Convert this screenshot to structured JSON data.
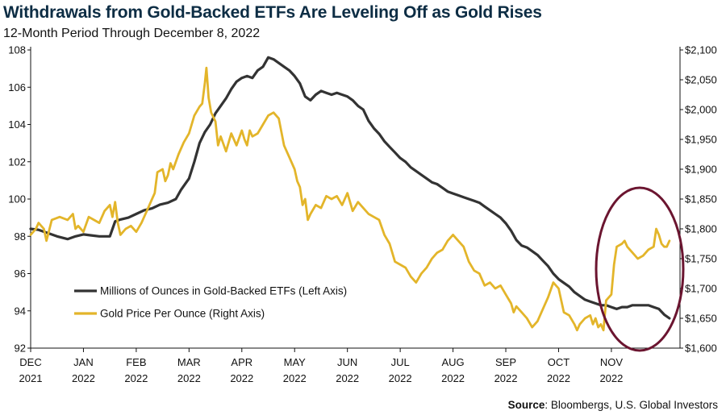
{
  "header": {
    "title": "Withdrawals from Gold-Backed ETFs Are Leveling Off as Gold Rises",
    "subtitle": "12-Month Period Through December 8, 2022"
  },
  "footer": {
    "source_label": "Source",
    "source_text": ": Bloombergs, U.S. Global Investors"
  },
  "colors": {
    "etf": "#333333",
    "gold": "#e3b52a",
    "circle": "#6b1530",
    "axis": "#111111"
  },
  "chart_data": {
    "type": "line",
    "x_ticks": [
      {
        "month": "DEC",
        "year": "2021"
      },
      {
        "month": "JAN",
        "year": "2022"
      },
      {
        "month": "FEB",
        "year": "2022"
      },
      {
        "month": "MAR",
        "year": "2022"
      },
      {
        "month": "APR",
        "year": "2022"
      },
      {
        "month": "MAY",
        "year": "2022"
      },
      {
        "month": "JUN",
        "year": "2022"
      },
      {
        "month": "JUL",
        "year": "2022"
      },
      {
        "month": "AUG",
        "year": "2022"
      },
      {
        "month": "SEP",
        "year": "2022"
      },
      {
        "month": "OCT",
        "year": "2022"
      },
      {
        "month": "NOV",
        "year": "2022"
      }
    ],
    "x_range": [
      0,
      12.3
    ],
    "y_left": {
      "min": 92,
      "max": 108,
      "ticks": [
        "92",
        "94",
        "96",
        "98",
        "100",
        "102",
        "104",
        "106",
        "108"
      ]
    },
    "y_right": {
      "min": 1600,
      "max": 2100,
      "ticks": [
        "$1,600",
        "$1,650",
        "$1,700",
        "$1,750",
        "$1,800",
        "$1,850",
        "$1,900",
        "$1,950",
        "$2,000",
        "$2,050",
        "$2,100"
      ]
    },
    "series": [
      {
        "name": "Millions of Ounces in Gold-Backed ETFs (Left Axis)",
        "axis": "left",
        "points": [
          [
            0.0,
            98.4
          ],
          [
            0.15,
            98.35
          ],
          [
            0.3,
            98.2
          ],
          [
            0.5,
            98.0
          ],
          [
            0.7,
            97.85
          ],
          [
            0.85,
            98.0
          ],
          [
            1.0,
            98.1
          ],
          [
            1.15,
            98.05
          ],
          [
            1.3,
            98.0
          ],
          [
            1.5,
            98.0
          ],
          [
            1.6,
            98.8
          ],
          [
            1.7,
            98.9
          ],
          [
            1.85,
            99.0
          ],
          [
            2.0,
            99.2
          ],
          [
            2.15,
            99.4
          ],
          [
            2.3,
            99.5
          ],
          [
            2.45,
            99.7
          ],
          [
            2.6,
            99.8
          ],
          [
            2.75,
            100.0
          ],
          [
            2.85,
            100.5
          ],
          [
            3.0,
            101.1
          ],
          [
            3.1,
            102.0
          ],
          [
            3.2,
            103.0
          ],
          [
            3.3,
            103.6
          ],
          [
            3.4,
            104.0
          ],
          [
            3.5,
            104.6
          ],
          [
            3.6,
            105.0
          ],
          [
            3.7,
            105.4
          ],
          [
            3.8,
            105.9
          ],
          [
            3.9,
            106.3
          ],
          [
            4.0,
            106.5
          ],
          [
            4.1,
            106.6
          ],
          [
            4.2,
            106.5
          ],
          [
            4.3,
            106.9
          ],
          [
            4.4,
            107.1
          ],
          [
            4.5,
            107.6
          ],
          [
            4.6,
            107.5
          ],
          [
            4.7,
            107.3
          ],
          [
            4.8,
            107.1
          ],
          [
            4.9,
            106.9
          ],
          [
            5.0,
            106.6
          ],
          [
            5.1,
            106.2
          ],
          [
            5.2,
            105.5
          ],
          [
            5.3,
            105.3
          ],
          [
            5.4,
            105.6
          ],
          [
            5.5,
            105.8
          ],
          [
            5.6,
            105.7
          ],
          [
            5.7,
            105.6
          ],
          [
            5.8,
            105.7
          ],
          [
            5.9,
            105.6
          ],
          [
            6.0,
            105.5
          ],
          [
            6.1,
            105.3
          ],
          [
            6.2,
            105.0
          ],
          [
            6.3,
            104.8
          ],
          [
            6.4,
            104.2
          ],
          [
            6.5,
            103.8
          ],
          [
            6.6,
            103.5
          ],
          [
            6.7,
            103.1
          ],
          [
            6.8,
            102.8
          ],
          [
            6.9,
            102.5
          ],
          [
            7.0,
            102.2
          ],
          [
            7.1,
            102.0
          ],
          [
            7.2,
            101.7
          ],
          [
            7.3,
            101.5
          ],
          [
            7.4,
            101.3
          ],
          [
            7.5,
            101.1
          ],
          [
            7.6,
            100.9
          ],
          [
            7.7,
            100.8
          ],
          [
            7.8,
            100.6
          ],
          [
            7.9,
            100.4
          ],
          [
            8.0,
            100.3
          ],
          [
            8.1,
            100.2
          ],
          [
            8.2,
            100.1
          ],
          [
            8.3,
            100.0
          ],
          [
            8.4,
            99.9
          ],
          [
            8.5,
            99.8
          ],
          [
            8.6,
            99.6
          ],
          [
            8.7,
            99.4
          ],
          [
            8.8,
            99.2
          ],
          [
            8.9,
            99.0
          ],
          [
            9.0,
            98.7
          ],
          [
            9.1,
            98.3
          ],
          [
            9.2,
            97.8
          ],
          [
            9.3,
            97.5
          ],
          [
            9.4,
            97.4
          ],
          [
            9.5,
            97.2
          ],
          [
            9.6,
            97.0
          ],
          [
            9.7,
            96.7
          ],
          [
            9.8,
            96.4
          ],
          [
            9.9,
            96.0
          ],
          [
            10.0,
            95.7
          ],
          [
            10.1,
            95.5
          ],
          [
            10.2,
            95.3
          ],
          [
            10.3,
            95.0
          ],
          [
            10.4,
            94.8
          ],
          [
            10.5,
            94.6
          ],
          [
            10.6,
            94.5
          ],
          [
            10.7,
            94.4
          ],
          [
            10.8,
            94.3
          ],
          [
            10.9,
            94.3
          ],
          [
            11.0,
            94.2
          ],
          [
            11.1,
            94.1
          ],
          [
            11.2,
            94.2
          ],
          [
            11.3,
            94.2
          ],
          [
            11.4,
            94.3
          ],
          [
            11.5,
            94.3
          ],
          [
            11.6,
            94.3
          ],
          [
            11.7,
            94.3
          ],
          [
            11.8,
            94.2
          ],
          [
            11.9,
            94.1
          ],
          [
            12.0,
            93.8
          ],
          [
            12.1,
            93.6
          ]
        ]
      },
      {
        "name": "Gold Price Per Ounce (Right Axis)",
        "axis": "right",
        "points": [
          [
            0.0,
            1790
          ],
          [
            0.1,
            1800
          ],
          [
            0.15,
            1810
          ],
          [
            0.25,
            1800
          ],
          [
            0.3,
            1780
          ],
          [
            0.4,
            1815
          ],
          [
            0.55,
            1820
          ],
          [
            0.7,
            1815
          ],
          [
            0.8,
            1825
          ],
          [
            0.85,
            1800
          ],
          [
            0.9,
            1805
          ],
          [
            1.0,
            1795
          ],
          [
            1.1,
            1820
          ],
          [
            1.2,
            1815
          ],
          [
            1.3,
            1810
          ],
          [
            1.4,
            1830
          ],
          [
            1.5,
            1840
          ],
          [
            1.55,
            1820
          ],
          [
            1.6,
            1845
          ],
          [
            1.65,
            1810
          ],
          [
            1.7,
            1790
          ],
          [
            1.8,
            1800
          ],
          [
            1.9,
            1805
          ],
          [
            2.0,
            1795
          ],
          [
            2.1,
            1810
          ],
          [
            2.2,
            1830
          ],
          [
            2.3,
            1850
          ],
          [
            2.35,
            1860
          ],
          [
            2.4,
            1895
          ],
          [
            2.5,
            1900
          ],
          [
            2.55,
            1880
          ],
          [
            2.6,
            1890
          ],
          [
            2.65,
            1910
          ],
          [
            2.7,
            1900
          ],
          [
            2.8,
            1925
          ],
          [
            2.9,
            1945
          ],
          [
            3.0,
            1960
          ],
          [
            3.1,
            1990
          ],
          [
            3.2,
            2005
          ],
          [
            3.25,
            2010
          ],
          [
            3.3,
            2045
          ],
          [
            3.33,
            2070
          ],
          [
            3.37,
            2020
          ],
          [
            3.42,
            1995
          ],
          [
            3.5,
            1980
          ],
          [
            3.55,
            1940
          ],
          [
            3.6,
            1955
          ],
          [
            3.7,
            1930
          ],
          [
            3.8,
            1960
          ],
          [
            3.9,
            1940
          ],
          [
            4.0,
            1965
          ],
          [
            4.05,
            1950
          ],
          [
            4.1,
            1940
          ],
          [
            4.15,
            1965
          ],
          [
            4.2,
            1955
          ],
          [
            4.3,
            1960
          ],
          [
            4.4,
            1975
          ],
          [
            4.5,
            1990
          ],
          [
            4.6,
            1995
          ],
          [
            4.7,
            1985
          ],
          [
            4.8,
            1940
          ],
          [
            4.9,
            1920
          ],
          [
            5.0,
            1900
          ],
          [
            5.05,
            1880
          ],
          [
            5.1,
            1870
          ],
          [
            5.15,
            1840
          ],
          [
            5.2,
            1850
          ],
          [
            5.25,
            1815
          ],
          [
            5.3,
            1825
          ],
          [
            5.4,
            1840
          ],
          [
            5.5,
            1835
          ],
          [
            5.6,
            1855
          ],
          [
            5.7,
            1850
          ],
          [
            5.8,
            1855
          ],
          [
            5.9,
            1840
          ],
          [
            6.0,
            1860
          ],
          [
            6.1,
            1830
          ],
          [
            6.2,
            1845
          ],
          [
            6.3,
            1835
          ],
          [
            6.4,
            1825
          ],
          [
            6.5,
            1820
          ],
          [
            6.6,
            1815
          ],
          [
            6.7,
            1790
          ],
          [
            6.8,
            1775
          ],
          [
            6.9,
            1745
          ],
          [
            7.0,
            1740
          ],
          [
            7.1,
            1735
          ],
          [
            7.2,
            1720
          ],
          [
            7.3,
            1710
          ],
          [
            7.4,
            1725
          ],
          [
            7.5,
            1735
          ],
          [
            7.6,
            1750
          ],
          [
            7.7,
            1760
          ],
          [
            7.8,
            1765
          ],
          [
            7.9,
            1780
          ],
          [
            8.0,
            1790
          ],
          [
            8.1,
            1780
          ],
          [
            8.2,
            1770
          ],
          [
            8.3,
            1745
          ],
          [
            8.4,
            1730
          ],
          [
            8.5,
            1725
          ],
          [
            8.6,
            1705
          ],
          [
            8.7,
            1710
          ],
          [
            8.8,
            1700
          ],
          [
            8.9,
            1705
          ],
          [
            9.0,
            1690
          ],
          [
            9.1,
            1675
          ],
          [
            9.15,
            1660
          ],
          [
            9.2,
            1670
          ],
          [
            9.3,
            1660
          ],
          [
            9.4,
            1650
          ],
          [
            9.5,
            1635
          ],
          [
            9.6,
            1645
          ],
          [
            9.7,
            1665
          ],
          [
            9.8,
            1685
          ],
          [
            9.9,
            1710
          ],
          [
            10.0,
            1700
          ],
          [
            10.1,
            1660
          ],
          [
            10.2,
            1655
          ],
          [
            10.3,
            1640
          ],
          [
            10.35,
            1630
          ],
          [
            10.4,
            1640
          ],
          [
            10.5,
            1650
          ],
          [
            10.6,
            1655
          ],
          [
            10.65,
            1640
          ],
          [
            10.7,
            1650
          ],
          [
            10.75,
            1635
          ],
          [
            10.8,
            1640
          ],
          [
            10.85,
            1630
          ],
          [
            10.9,
            1680
          ],
          [
            11.0,
            1690
          ],
          [
            11.05,
            1740
          ],
          [
            11.1,
            1770
          ],
          [
            11.2,
            1775
          ],
          [
            11.25,
            1780
          ],
          [
            11.3,
            1770
          ],
          [
            11.4,
            1760
          ],
          [
            11.5,
            1750
          ],
          [
            11.6,
            1755
          ],
          [
            11.7,
            1765
          ],
          [
            11.8,
            1770
          ],
          [
            11.85,
            1800
          ],
          [
            11.9,
            1790
          ],
          [
            11.95,
            1775
          ],
          [
            12.0,
            1770
          ],
          [
            12.05,
            1770
          ],
          [
            12.1,
            1780
          ]
        ]
      }
    ],
    "annotation": {
      "type": "ellipse",
      "note": "circle highlighting recent leveling off"
    }
  }
}
